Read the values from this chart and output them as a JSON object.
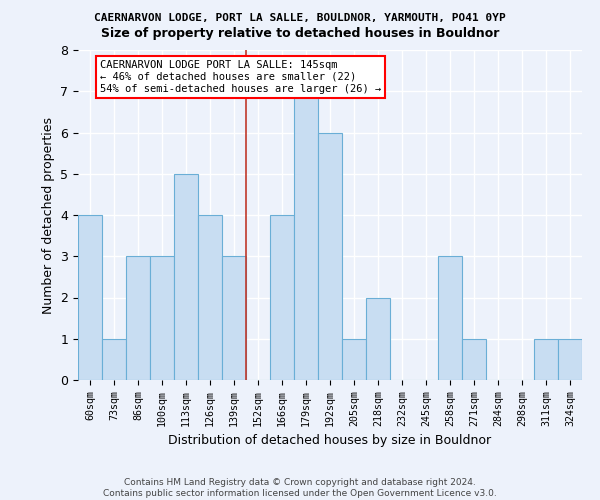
{
  "title1": "CAERNARVON LODGE, PORT LA SALLE, BOULDNOR, YARMOUTH, PO41 0YP",
  "title2": "Size of property relative to detached houses in Bouldnor",
  "xlabel": "Distribution of detached houses by size in Bouldnor",
  "ylabel": "Number of detached properties",
  "categories": [
    "60sqm",
    "73sqm",
    "86sqm",
    "100sqm",
    "113sqm",
    "126sqm",
    "139sqm",
    "152sqm",
    "166sqm",
    "179sqm",
    "192sqm",
    "205sqm",
    "218sqm",
    "232sqm",
    "245sqm",
    "258sqm",
    "271sqm",
    "284sqm",
    "298sqm",
    "311sqm",
    "324sqm"
  ],
  "values": [
    4,
    1,
    3,
    3,
    5,
    4,
    3,
    0,
    4,
    7,
    6,
    1,
    2,
    0,
    0,
    3,
    1,
    0,
    0,
    1,
    1
  ],
  "bar_color": "#c8ddf2",
  "bar_edge_color": "#6aaed6",
  "property_label": "CAERNARVON LODGE PORT LA SALLE: 145sqm",
  "annotation_line1": "← 46% of detached houses are smaller (22)",
  "annotation_line2": "54% of semi-detached houses are larger (26) →",
  "vline_color": "#c0392b",
  "vline_x": 6.5,
  "footer_line1": "Contains HM Land Registry data © Crown copyright and database right 2024.",
  "footer_line2": "Contains public sector information licensed under the Open Government Licence v3.0.",
  "bg_color": "#edf2fb",
  "grid_color": "#ffffff",
  "ylim": [
    0,
    8
  ],
  "yticks": [
    0,
    1,
    2,
    3,
    4,
    5,
    6,
    7,
    8
  ]
}
